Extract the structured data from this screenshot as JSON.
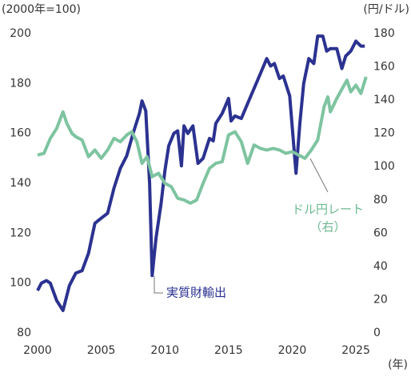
{
  "chart_data": {
    "type": "line",
    "y_label": "(2000年=100)",
    "y2_label": "(円/ドル)",
    "x_label": "(年)",
    "xlim": [
      2000,
      2026
    ],
    "xticks": [
      2000,
      2005,
      2010,
      2015,
      2020,
      2025
    ],
    "ylim": [
      80,
      200
    ],
    "yticks": [
      80,
      100,
      120,
      140,
      160,
      180,
      200
    ],
    "y2lim": [
      0,
      180
    ],
    "y2ticks": [
      0,
      20,
      40,
      60,
      80,
      100,
      120,
      140,
      160,
      180
    ],
    "grid": false,
    "annotations": [
      "実質財輸出",
      "ドル円レート",
      "（右）"
    ],
    "series": [
      {
        "name": "実質財輸出",
        "color": "#2b3290",
        "axis": "y",
        "x": [
          2000.0,
          2000.3,
          2000.7,
          2001.0,
          2001.5,
          2002.0,
          2002.5,
          2003.0,
          2003.5,
          2004.0,
          2004.5,
          2005.0,
          2005.5,
          2006.0,
          2006.5,
          2007.0,
          2007.5,
          2008.0,
          2008.2,
          2008.5,
          2008.8,
          2009.0,
          2009.3,
          2009.7,
          2010.0,
          2010.3,
          2010.7,
          2011.0,
          2011.3,
          2011.5,
          2011.8,
          2012.2,
          2012.6,
          2013.0,
          2013.5,
          2013.8,
          2014.0,
          2014.5,
          2015.0,
          2015.2,
          2015.5,
          2016.0,
          2016.5,
          2017.0,
          2017.5,
          2018.0,
          2018.3,
          2018.6,
          2019.0,
          2019.3,
          2019.8,
          2020.3,
          2020.6,
          2020.9,
          2021.3,
          2021.7,
          2022.0,
          2022.4,
          2022.7,
          2023.0,
          2023.5,
          2023.9,
          2024.2,
          2024.6,
          2025.0,
          2025.4,
          2025.7
        ],
        "values": [
          97,
          100,
          101,
          100,
          93,
          89,
          99,
          104,
          105,
          112,
          124,
          126,
          128,
          138,
          146,
          151,
          160,
          168,
          173,
          169,
          140,
          103,
          118,
          132,
          145,
          155,
          160,
          161,
          147,
          163,
          160,
          163,
          148,
          150,
          158,
          157,
          164,
          168,
          174,
          165,
          167,
          166,
          172,
          178,
          184,
          190,
          187,
          188,
          182,
          183,
          175,
          144,
          164,
          180,
          190,
          188,
          199,
          199,
          193,
          194,
          194,
          186,
          191,
          193,
          197,
          195,
          195
        ]
      },
      {
        "name": "ドル円レート",
        "color": "#7ec4a0",
        "axis": "y2",
        "x": [
          2000.0,
          2000.5,
          2001.0,
          2001.5,
          2002.0,
          2002.3,
          2002.7,
          2003.0,
          2003.5,
          2004.0,
          2004.5,
          2005.0,
          2005.5,
          2006.0,
          2006.5,
          2007.0,
          2007.4,
          2007.8,
          2008.2,
          2008.6,
          2009.0,
          2009.5,
          2010.0,
          2010.5,
          2011.0,
          2011.5,
          2012.0,
          2012.5,
          2013.0,
          2013.5,
          2014.0,
          2014.5,
          2015.0,
          2015.5,
          2016.0,
          2016.5,
          2017.0,
          2017.5,
          2018.0,
          2018.5,
          2019.0,
          2019.5,
          2020.0,
          2020.5,
          2021.0,
          2021.5,
          2022.0,
          2022.5,
          2022.8,
          2023.0,
          2023.5,
          2024.0,
          2024.3,
          2024.6,
          2025.0,
          2025.4,
          2025.8
        ],
        "values": [
          107,
          108,
          117,
          123,
          133,
          126,
          120,
          118,
          116,
          106,
          110,
          105,
          110,
          117,
          115,
          119,
          121,
          115,
          102,
          106,
          94,
          96,
          90,
          88,
          81,
          80,
          78,
          80,
          90,
          99,
          102,
          103,
          119,
          121,
          115,
          102,
          113,
          111,
          110,
          111,
          110,
          108,
          109,
          107,
          105,
          110,
          116,
          136,
          142,
          133,
          141,
          148,
          152,
          145,
          149,
          144,
          154
        ]
      }
    ]
  }
}
